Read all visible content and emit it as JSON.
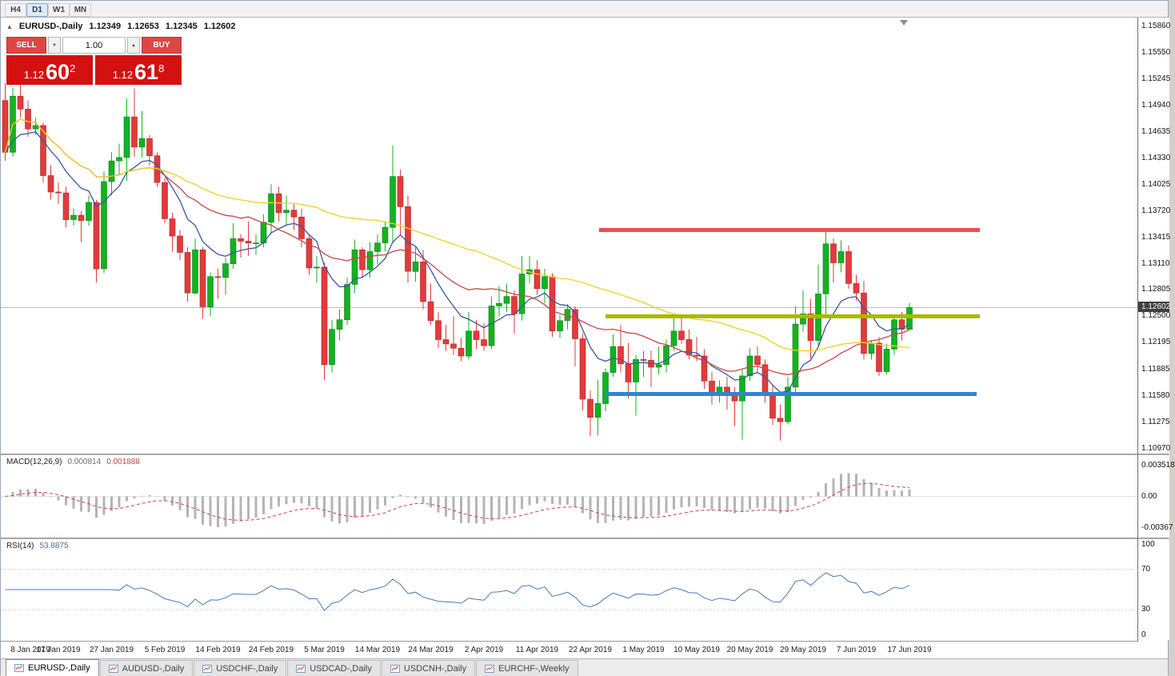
{
  "toolbar": {
    "timeframes": [
      {
        "label": "H4",
        "active": false
      },
      {
        "label": "D1",
        "active": true
      },
      {
        "label": "W1",
        "active": false
      },
      {
        "label": "MN",
        "active": false
      }
    ]
  },
  "icons": {
    "collapse": "▲",
    "spinner_up": "▲",
    "spinner_down": "▼"
  },
  "symbol_header": {
    "symbol": "EURUSD-,Daily",
    "open": "1.12349",
    "high": "1.12653",
    "low": "1.12345",
    "close": "1.12602"
  },
  "trade_panel": {
    "sell_label": "SELL",
    "buy_label": "BUY",
    "volume": "1.00",
    "bid_small": "1.12",
    "bid_big": "60",
    "bid_sup": "2",
    "ask_small": "1.12",
    "ask_big": "61",
    "ask_sup": "8",
    "box_color": "#d31111",
    "button_color": "#e04545"
  },
  "price_scale": {
    "labels": [
      "1.15860",
      "1.15550",
      "1.15245",
      "1.14940",
      "1.14635",
      "1.14330",
      "1.14025",
      "1.13720",
      "1.13415",
      "1.13110",
      "1.12805",
      "1.12500",
      "1.12195",
      "1.11885",
      "1.11580",
      "1.11275",
      "1.10970"
    ],
    "current": "1.12602"
  },
  "indicators": {
    "macd": {
      "label": "MACD(12,26,9)",
      "value1": "0.000814",
      "value2": "0.001888",
      "axis": [
        "0.003518",
        "0.00",
        "-0.00367"
      ],
      "fast": 12,
      "slow": 26,
      "signal": 9,
      "histogram_color": "#b4b4b4",
      "signal_color": "#d24040"
    },
    "rsi": {
      "label": "RSI(14)",
      "value": "53.8875",
      "axis": [
        "100",
        "70",
        "30",
        "0"
      ],
      "period": 14,
      "levels": [
        70,
        30
      ],
      "line_color": "#4a7ab5"
    }
  },
  "date_axis": [
    "8 Jan 2019",
    "17 Jan 2019",
    "27 Jan 2019",
    "5 Feb 2019",
    "14 Feb 2019",
    "24 Feb 2019",
    "5 Mar 2019",
    "14 Mar 2019",
    "24 Mar 2019",
    "2 Apr 2019",
    "11 Apr 2019",
    "22 Apr 2019",
    "1 May 2019",
    "10 May 2019",
    "20 May 2019",
    "29 May 2019",
    "7 Jun 2019",
    "17 Jun 2019"
  ],
  "bottom_tabs": [
    {
      "label": "EURUSD-,Daily",
      "active": true
    },
    {
      "label": "AUDUSD-,Daily",
      "active": false
    },
    {
      "label": "USDCHF-,Daily",
      "active": false
    },
    {
      "label": "USDCAD-,Daily",
      "active": false
    },
    {
      "label": "USDCNH-,Daily",
      "active": false
    },
    {
      "label": "EURCHF-,Weekly",
      "active": false
    }
  ],
  "chart_data": {
    "type": "candlestick",
    "symbol": "EURUSD",
    "timeframe": "Daily",
    "y_range": [
      1.1091,
      1.1596
    ],
    "label_every": 7,
    "current_price": 1.12602,
    "up_color": "#12b31f",
    "down_color": "#e13b3b",
    "moving_averages": [
      {
        "period": 9,
        "type": "ema",
        "color": "#3c55a5"
      },
      {
        "period": 20,
        "type": "sma",
        "color": "#c74848"
      },
      {
        "period": 50,
        "type": "sma",
        "color": "#f0d020"
      }
    ],
    "levels": [
      {
        "name": "resistance-line",
        "price": 1.135,
        "color": "#ef4e4e",
        "x1": 748,
        "x2": 1224,
        "width": 5
      },
      {
        "name": "pivot-line",
        "price": 1.125,
        "color": "#a9b800",
        "x1": 756,
        "x2": 1224,
        "width": 5
      },
      {
        "name": "support-line",
        "price": 1.116,
        "color": "#2e86d0",
        "x1": 756,
        "x2": 1220,
        "width": 5
      }
    ],
    "candles": [
      [
        1.15,
        1.152,
        1.143,
        1.144
      ],
      [
        1.144,
        1.1515,
        1.1435,
        1.1505
      ],
      [
        1.1505,
        1.1518,
        1.148,
        1.149
      ],
      [
        1.149,
        1.15,
        1.1458,
        1.1467
      ],
      [
        1.1467,
        1.148,
        1.146,
        1.1471
      ],
      [
        1.1471,
        1.1475,
        1.1405,
        1.1413
      ],
      [
        1.1413,
        1.1425,
        1.1385,
        1.1394
      ],
      [
        1.1394,
        1.1405,
        1.138,
        1.1393
      ],
      [
        1.1393,
        1.14,
        1.1353,
        1.1362
      ],
      [
        1.1362,
        1.1375,
        1.1355,
        1.1367
      ],
      [
        1.1367,
        1.1372,
        1.1336,
        1.1361
      ],
      [
        1.1361,
        1.139,
        1.1355,
        1.1382
      ],
      [
        1.1382,
        1.1385,
        1.1289,
        1.1305
      ],
      [
        1.1305,
        1.1418,
        1.13,
        1.1406
      ],
      [
        1.1406,
        1.144,
        1.139,
        1.143
      ],
      [
        1.143,
        1.145,
        1.1413,
        1.1434
      ],
      [
        1.1434,
        1.1502,
        1.1407,
        1.1481
      ],
      [
        1.1481,
        1.1514,
        1.1435,
        1.1446
      ],
      [
        1.1446,
        1.1488,
        1.1434,
        1.1456
      ],
      [
        1.1456,
        1.146,
        1.1425,
        1.1436
      ],
      [
        1.1436,
        1.144,
        1.14,
        1.1405
      ],
      [
        1.1405,
        1.141,
        1.1358,
        1.1363
      ],
      [
        1.1363,
        1.137,
        1.1325,
        1.1343
      ],
      [
        1.1343,
        1.135,
        1.1315,
        1.1324
      ],
      [
        1.1324,
        1.133,
        1.1267,
        1.1277
      ],
      [
        1.1277,
        1.134,
        1.1275,
        1.1327
      ],
      [
        1.1327,
        1.133,
        1.1247,
        1.1261
      ],
      [
        1.1261,
        1.1301,
        1.125,
        1.1296
      ],
      [
        1.1296,
        1.1305,
        1.127,
        1.1295
      ],
      [
        1.1295,
        1.1318,
        1.1275,
        1.1311
      ],
      [
        1.1311,
        1.1358,
        1.1305,
        1.134
      ],
      [
        1.134,
        1.1345,
        1.1318,
        1.1337
      ],
      [
        1.1337,
        1.136,
        1.132,
        1.1335
      ],
      [
        1.1335,
        1.1345,
        1.1321,
        1.1335
      ],
      [
        1.1335,
        1.1368,
        1.133,
        1.1359
      ],
      [
        1.1359,
        1.1403,
        1.1345,
        1.1392
      ],
      [
        1.1392,
        1.14,
        1.136,
        1.137
      ],
      [
        1.137,
        1.139,
        1.1355,
        1.1373
      ],
      [
        1.1373,
        1.138,
        1.135,
        1.1365
      ],
      [
        1.1365,
        1.1375,
        1.133,
        1.134
      ],
      [
        1.134,
        1.1345,
        1.1298,
        1.1306
      ],
      [
        1.1306,
        1.132,
        1.1289,
        1.1307
      ],
      [
        1.1307,
        1.1312,
        1.1176,
        1.1194
      ],
      [
        1.1194,
        1.1246,
        1.1185,
        1.1235
      ],
      [
        1.1235,
        1.1258,
        1.1222,
        1.1246
      ],
      [
        1.1246,
        1.1295,
        1.124,
        1.1287
      ],
      [
        1.1287,
        1.1339,
        1.1277,
        1.1327
      ],
      [
        1.1327,
        1.133,
        1.1294,
        1.1304
      ],
      [
        1.1304,
        1.1336,
        1.1295,
        1.1325
      ],
      [
        1.1325,
        1.1345,
        1.131,
        1.1335
      ],
      [
        1.1335,
        1.136,
        1.1325,
        1.1353
      ],
      [
        1.1353,
        1.1448,
        1.1335,
        1.1412
      ],
      [
        1.1412,
        1.142,
        1.1343,
        1.1377
      ],
      [
        1.1377,
        1.139,
        1.1289,
        1.1302
      ],
      [
        1.1302,
        1.133,
        1.129,
        1.1313
      ],
      [
        1.1313,
        1.1327,
        1.1258,
        1.1267
      ],
      [
        1.1267,
        1.1288,
        1.124,
        1.1245
      ],
      [
        1.1245,
        1.1255,
        1.1213,
        1.1223
      ],
      [
        1.1223,
        1.124,
        1.121,
        1.1218
      ],
      [
        1.1218,
        1.125,
        1.1205,
        1.1213
      ],
      [
        1.1213,
        1.1225,
        1.1198,
        1.1204
      ],
      [
        1.1204,
        1.1255,
        1.12,
        1.1233
      ],
      [
        1.1233,
        1.1246,
        1.1212,
        1.1223
      ],
      [
        1.1223,
        1.1242,
        1.121,
        1.1216
      ],
      [
        1.1216,
        1.1273,
        1.1212,
        1.1262
      ],
      [
        1.1262,
        1.1285,
        1.125,
        1.1265
      ],
      [
        1.1265,
        1.1288,
        1.1255,
        1.1273
      ],
      [
        1.1273,
        1.128,
        1.123,
        1.1253
      ],
      [
        1.1253,
        1.132,
        1.1245,
        1.1299
      ],
      [
        1.1299,
        1.132,
        1.1288,
        1.1304
      ],
      [
        1.1304,
        1.1315,
        1.1275,
        1.1282
      ],
      [
        1.1282,
        1.1305,
        1.1265,
        1.1296
      ],
      [
        1.1296,
        1.13,
        1.1226,
        1.1233
      ],
      [
        1.1233,
        1.1252,
        1.1225,
        1.1245
      ],
      [
        1.1245,
        1.1264,
        1.1235,
        1.1258
      ],
      [
        1.1258,
        1.1262,
        1.1192,
        1.1224
      ],
      [
        1.1224,
        1.123,
        1.1141,
        1.1154
      ],
      [
        1.1154,
        1.1164,
        1.1111,
        1.1133
      ],
      [
        1.1133,
        1.1176,
        1.1112,
        1.1149
      ],
      [
        1.1149,
        1.119,
        1.114,
        1.1185
      ],
      [
        1.1185,
        1.1229,
        1.118,
        1.1215
      ],
      [
        1.1215,
        1.124,
        1.1185,
        1.1195
      ],
      [
        1.1195,
        1.1219,
        1.1155,
        1.1174
      ],
      [
        1.1174,
        1.1205,
        1.1135,
        1.12
      ],
      [
        1.12,
        1.121,
        1.118,
        1.1199
      ],
      [
        1.1199,
        1.121,
        1.1168,
        1.1191
      ],
      [
        1.1191,
        1.1215,
        1.1183,
        1.1194
      ],
      [
        1.1194,
        1.1223,
        1.1185,
        1.1216
      ],
      [
        1.1216,
        1.1253,
        1.121,
        1.1233
      ],
      [
        1.1233,
        1.1248,
        1.1218,
        1.1223
      ],
      [
        1.1223,
        1.1235,
        1.12,
        1.1205
      ],
      [
        1.1205,
        1.1226,
        1.1198,
        1.1204
      ],
      [
        1.1204,
        1.1212,
        1.1166,
        1.1175
      ],
      [
        1.1175,
        1.1186,
        1.1148,
        1.1158
      ],
      [
        1.1158,
        1.1176,
        1.115,
        1.1168
      ],
      [
        1.1168,
        1.118,
        1.1142,
        1.1161
      ],
      [
        1.1161,
        1.1168,
        1.1123,
        1.1152
      ],
      [
        1.1152,
        1.1188,
        1.1107,
        1.1181
      ],
      [
        1.1181,
        1.1213,
        1.1175,
        1.1204
      ],
      [
        1.1204,
        1.1215,
        1.1185,
        1.1194
      ],
      [
        1.1194,
        1.12,
        1.115,
        1.1161
      ],
      [
        1.1161,
        1.117,
        1.1124,
        1.1132
      ],
      [
        1.1132,
        1.1148,
        1.1106,
        1.1128
      ],
      [
        1.1128,
        1.118,
        1.1125,
        1.1168
      ],
      [
        1.1168,
        1.1262,
        1.116,
        1.1241
      ],
      [
        1.1241,
        1.128,
        1.1232,
        1.1253
      ],
      [
        1.1253,
        1.127,
        1.1201,
        1.1222
      ],
      [
        1.1222,
        1.131,
        1.1215,
        1.1276
      ],
      [
        1.1276,
        1.1348,
        1.125,
        1.1334
      ],
      [
        1.1334,
        1.134,
        1.1289,
        1.1312
      ],
      [
        1.1312,
        1.1338,
        1.1301,
        1.1325
      ],
      [
        1.1325,
        1.1332,
        1.1282,
        1.1288
      ],
      [
        1.1288,
        1.1298,
        1.1268,
        1.1277
      ],
      [
        1.1277,
        1.1291,
        1.12,
        1.1207
      ],
      [
        1.1207,
        1.1222,
        1.12,
        1.1219
      ],
      [
        1.1219,
        1.1226,
        1.1181,
        1.1186
      ],
      [
        1.1186,
        1.1218,
        1.1183,
        1.1212
      ],
      [
        1.1212,
        1.125,
        1.1205,
        1.1246
      ],
      [
        1.1246,
        1.1255,
        1.1222,
        1.1235
      ],
      [
        1.12349,
        1.12653,
        1.12345,
        1.12602
      ]
    ]
  }
}
